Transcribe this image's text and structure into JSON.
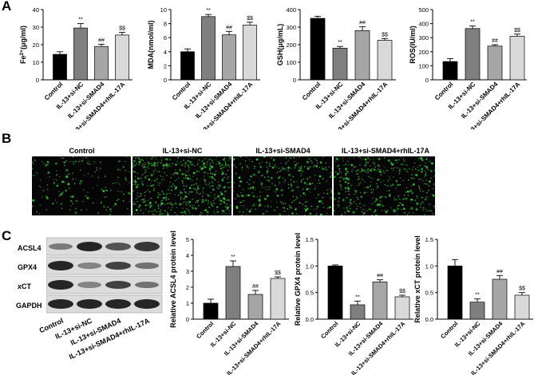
{
  "panels": {
    "a": "A",
    "b": "B",
    "c": "C"
  },
  "colors": {
    "control": "#000000",
    "si_nc": "#7f7f7f",
    "si_smad4": "#a6a6a6",
    "si_smad4_rhil17a": "#d9d9d9",
    "fluor": "#33cc33"
  },
  "microscopy": {
    "labels": [
      "Control",
      "IL-13+si-NC",
      "IL-13+si-SMAD4",
      "IL-13+si-SMAD4+rhIL-17A"
    ],
    "density": [
      0.25,
      1.0,
      0.55,
      0.7
    ]
  },
  "western_blot": {
    "bands": [
      "ACSL4",
      "GPX4",
      "xCT",
      "GAPDH"
    ],
    "lanes": [
      "Control",
      "IL-13+si-NC",
      "IL-13+si-SMAD4",
      "IL-13+si-SMAD4+rhIL-17A"
    ]
  },
  "chart_data": [
    {
      "type": "bar",
      "ylabel": "Fe2+(μg/ml)",
      "ylabel_main": "Fe",
      "ylabel_sup": "2+",
      "ylabel_rest": "(μg/ml)",
      "categories": [
        "Control",
        "IL-13+si-NC",
        "IL-13+si-SMAD4",
        "IL-13+si-SMAD4+rhIL-17A"
      ],
      "values": [
        14.5,
        29.5,
        19,
        25.5
      ],
      "errors": [
        1.5,
        2.5,
        1.2,
        1.5
      ],
      "annotations": [
        "",
        "**",
        "##",
        "$$"
      ],
      "ylim": [
        0,
        40
      ],
      "yticks": [
        0,
        10,
        20,
        30,
        40
      ]
    },
    {
      "type": "bar",
      "ylabel": "MDA(nmol/ml)",
      "categories": [
        "Control",
        "IL-13+si-NC",
        "IL-13+si-SMAD4",
        "IL-13+si-SMAD4+rhIL-17A"
      ],
      "values": [
        4.0,
        9.0,
        6.4,
        7.8
      ],
      "errors": [
        0.4,
        0.3,
        0.5,
        0.4
      ],
      "annotations": [
        "",
        "**",
        "##",
        "$$"
      ],
      "ylim": [
        0,
        10
      ],
      "yticks": [
        0,
        2,
        4,
        6,
        8,
        10
      ]
    },
    {
      "type": "bar",
      "ylabel": "GSH(μg/mL)",
      "categories": [
        "Control",
        "IL-13+si-NC",
        "IL-13+si-SMAD4",
        "IL-13+si-SMAD4+rhIL-17A"
      ],
      "values": [
        350,
        180,
        280,
        225
      ],
      "errors": [
        12,
        10,
        22,
        10
      ],
      "annotations": [
        "",
        "**",
        "##",
        "$$"
      ],
      "ylim": [
        0,
        400
      ],
      "yticks": [
        0,
        100,
        200,
        300,
        400
      ]
    },
    {
      "type": "bar",
      "ylabel": "ROS(IU/ml)",
      "categories": [
        "Control",
        "IL-13+si-NC",
        "IL-13+si-SMAD4",
        "IL-13+si-SMAD4+rhIL-17A"
      ],
      "values": [
        130,
        365,
        240,
        310
      ],
      "errors": [
        20,
        18,
        10,
        15
      ],
      "annotations": [
        "",
        "**",
        "##",
        "$$"
      ],
      "ylim": [
        0,
        500
      ],
      "yticks": [
        0,
        100,
        200,
        300,
        400,
        500
      ]
    },
    {
      "type": "bar",
      "ylabel": "Relative ACSL4 protein level",
      "categories": [
        "Control",
        "IL-13+si-NC",
        "IL-13+si-SMAD4",
        "IL-13+si-SMAD4+rhIL-17A"
      ],
      "values": [
        1.0,
        3.3,
        1.55,
        2.55
      ],
      "errors": [
        0.25,
        0.35,
        0.25,
        0.1
      ],
      "annotations": [
        "",
        "**",
        "##",
        "$$"
      ],
      "ylim": [
        0,
        5
      ],
      "yticks": [
        0,
        1,
        2,
        3,
        4,
        5
      ]
    },
    {
      "type": "bar",
      "ylabel": "Relative GPX4 protein level",
      "categories": [
        "Control",
        "IL-13+si-NC",
        "IL-13+si-SMAD4",
        "IL-13+si-SMAD4+rhIL-17A"
      ],
      "values": [
        1.0,
        0.27,
        0.7,
        0.42
      ],
      "errors": [
        0.02,
        0.07,
        0.04,
        0.03
      ],
      "annotations": [
        "",
        "**",
        "##",
        "$$"
      ],
      "ylim": [
        0,
        1.5
      ],
      "yticks": [
        0.0,
        0.5,
        1.0,
        1.5
      ]
    },
    {
      "type": "bar",
      "ylabel": "Relative xCT protein level",
      "categories": [
        "Control",
        "IL-13+si-NC",
        "IL-13+si-SMAD4",
        "IL-13+si-SMAD4+rhIL-17A"
      ],
      "values": [
        1.0,
        0.32,
        0.75,
        0.45
      ],
      "errors": [
        0.12,
        0.06,
        0.07,
        0.05
      ],
      "annotations": [
        "",
        "**",
        "##",
        "$$"
      ],
      "ylim": [
        0,
        1.5
      ],
      "yticks": [
        0.0,
        0.5,
        1.0,
        1.5
      ]
    }
  ]
}
